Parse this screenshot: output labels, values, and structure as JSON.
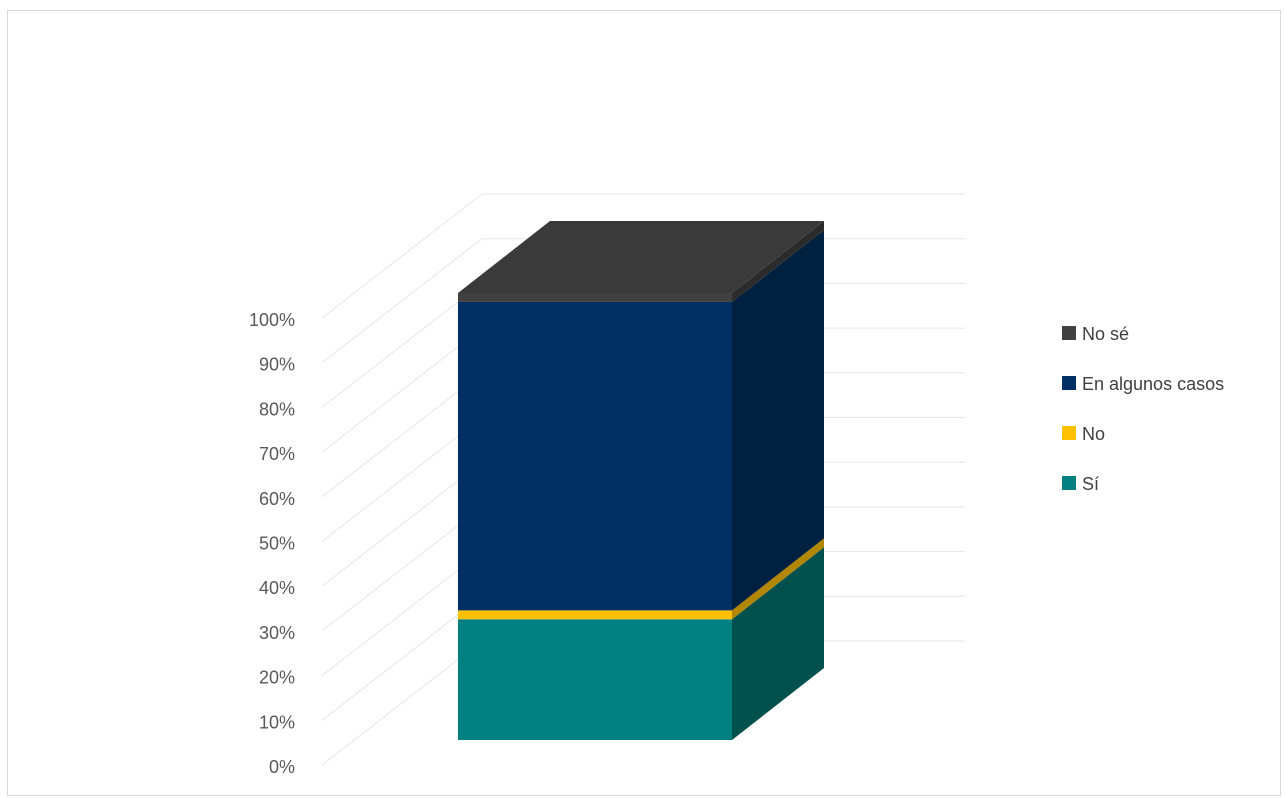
{
  "chart_data": {
    "type": "bar",
    "style": "3d-stacked-100",
    "categories": [
      ""
    ],
    "series": [
      {
        "name": "Sí",
        "values": [
          27
        ],
        "color": "#008080",
        "side_color": "#00504D"
      },
      {
        "name": "No",
        "values": [
          2
        ],
        "color": "#FFC000",
        "side_color": "#B38600"
      },
      {
        "name": "En algunos casos",
        "values": [
          69
        ],
        "color": "#002F63",
        "side_color": "#00203F"
      },
      {
        "name": "No sé",
        "values": [
          2
        ],
        "color": "#404040",
        "side_color": "#2B2B2B"
      }
    ],
    "y_ticks": [
      "0%",
      "10%",
      "20%",
      "30%",
      "40%",
      "50%",
      "60%",
      "70%",
      "80%",
      "90%",
      "100%"
    ],
    "ylim": [
      0,
      100
    ],
    "grid": true,
    "legend_position": "right",
    "legend_entries": [
      "No sé",
      "En algunos casos",
      "No",
      "Sí"
    ],
    "title": "",
    "xlabel": "",
    "ylabel": ""
  }
}
